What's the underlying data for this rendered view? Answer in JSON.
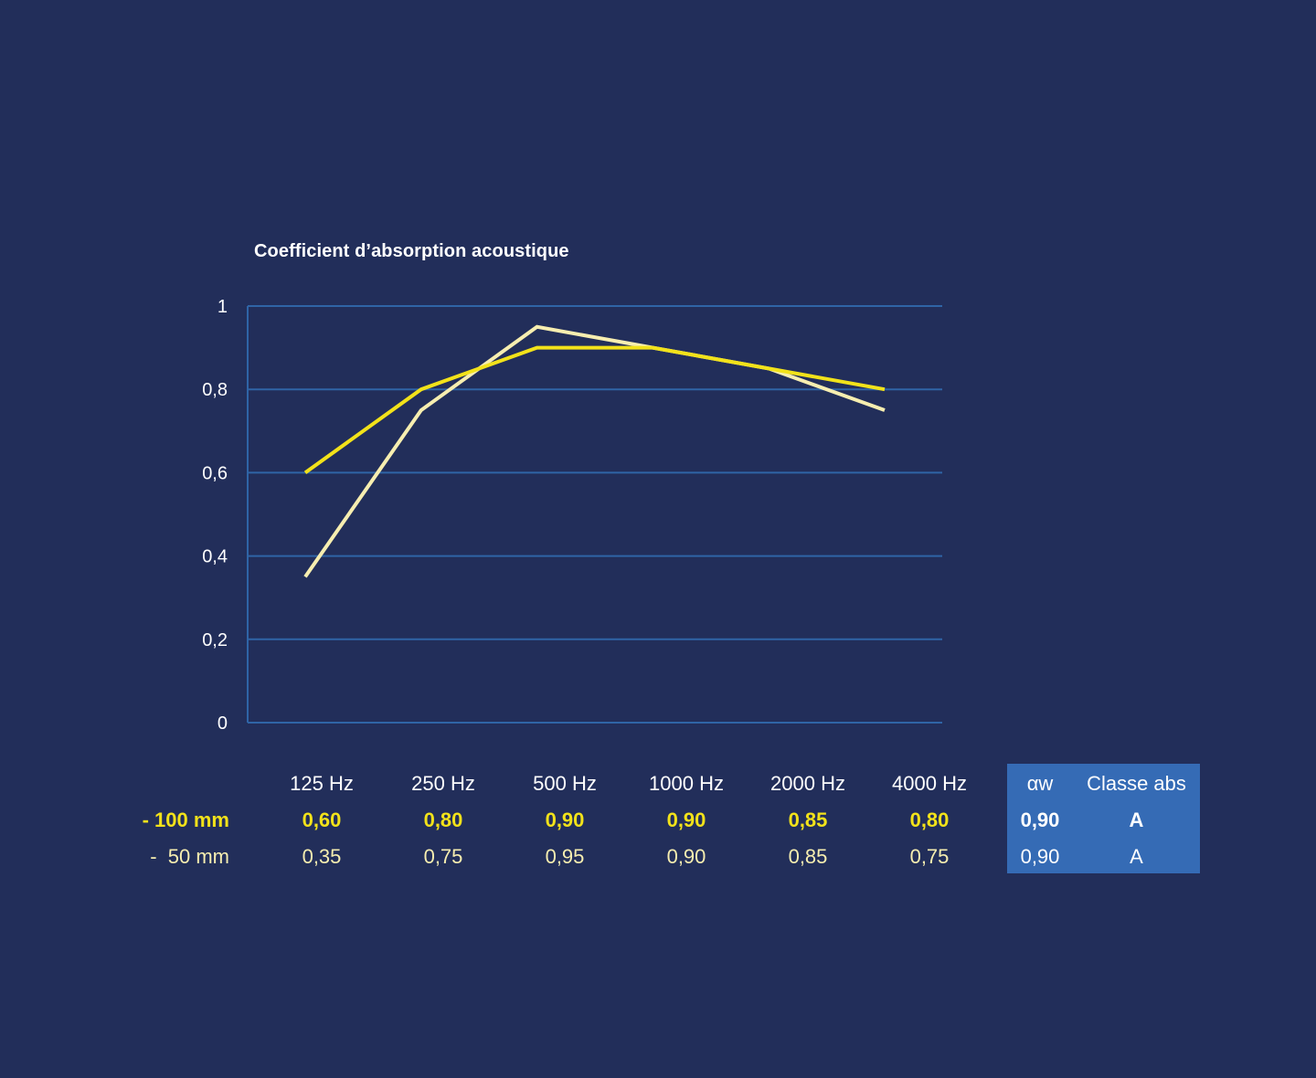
{
  "colors": {
    "background": "#222e5a",
    "grid": "#2f64a6",
    "series_100": "#f2e21a",
    "series_50": "#f7eeb0",
    "table_box": "#356bb5"
  },
  "chart_data": {
    "type": "line",
    "title": "Coefficient d’absorption acoustique",
    "categories": [
      "125 Hz",
      "250 Hz",
      "500 Hz",
      "1000 Hz",
      "2000 Hz",
      "4000 Hz"
    ],
    "y_ticks": [
      "0",
      "0,2",
      "0,4",
      "0,6",
      "0,8",
      "1"
    ],
    "ylim": [
      0,
      1
    ],
    "grid": true,
    "series": [
      {
        "name": "- 100 mm",
        "color": "#f2e21a",
        "values": [
          0.6,
          0.8,
          0.9,
          0.9,
          0.85,
          0.8
        ]
      },
      {
        "name": "-  50 mm",
        "color": "#f7eeb0",
        "values": [
          0.35,
          0.75,
          0.95,
          0.9,
          0.85,
          0.75
        ]
      }
    ]
  },
  "table": {
    "headers": [
      "125 Hz",
      "250 Hz",
      "500 Hz",
      "1000 Hz",
      "2000 Hz",
      "4000 Hz"
    ],
    "extra_headers": [
      "αw",
      "Classe abs"
    ],
    "rows": [
      {
        "label": "- 100 mm",
        "values": [
          "0,60",
          "0,80",
          "0,90",
          "0,90",
          "0,85",
          "0,80"
        ],
        "aw": "0,90",
        "classe": "A"
      },
      {
        "label": "-  50 mm",
        "values": [
          "0,35",
          "0,75",
          "0,95",
          "0,90",
          "0,85",
          "0,75"
        ],
        "aw": "0,90",
        "classe": "A"
      }
    ]
  }
}
